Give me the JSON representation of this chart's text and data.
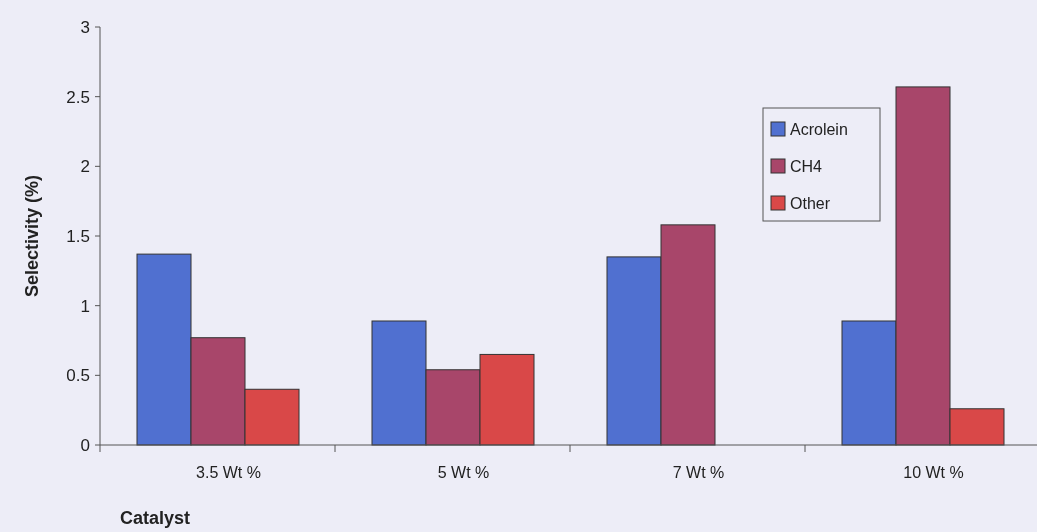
{
  "chart_data": {
    "type": "bar",
    "xlabel": "Catalyst",
    "ylabel": "Selectivity (%)",
    "categories": [
      "3.5 Wt %",
      "5 Wt %",
      "7 Wt %",
      "10 Wt %"
    ],
    "series": [
      {
        "name": "Acrolein",
        "color": "#5070d0",
        "values": [
          1.37,
          0.89,
          1.35,
          0.89
        ]
      },
      {
        "name": "CH4",
        "color": "#a8466a",
        "values": [
          0.77,
          0.54,
          1.58,
          2.57
        ]
      },
      {
        "name": "Other",
        "color": "#d94848",
        "values": [
          0.4,
          0.65,
          null,
          0.26
        ]
      }
    ],
    "ylim": [
      0,
      3
    ],
    "yticks": [
      0,
      0.5,
      1,
      1.5,
      2,
      2.5,
      3
    ],
    "grid": false,
    "legend": "top right"
  }
}
